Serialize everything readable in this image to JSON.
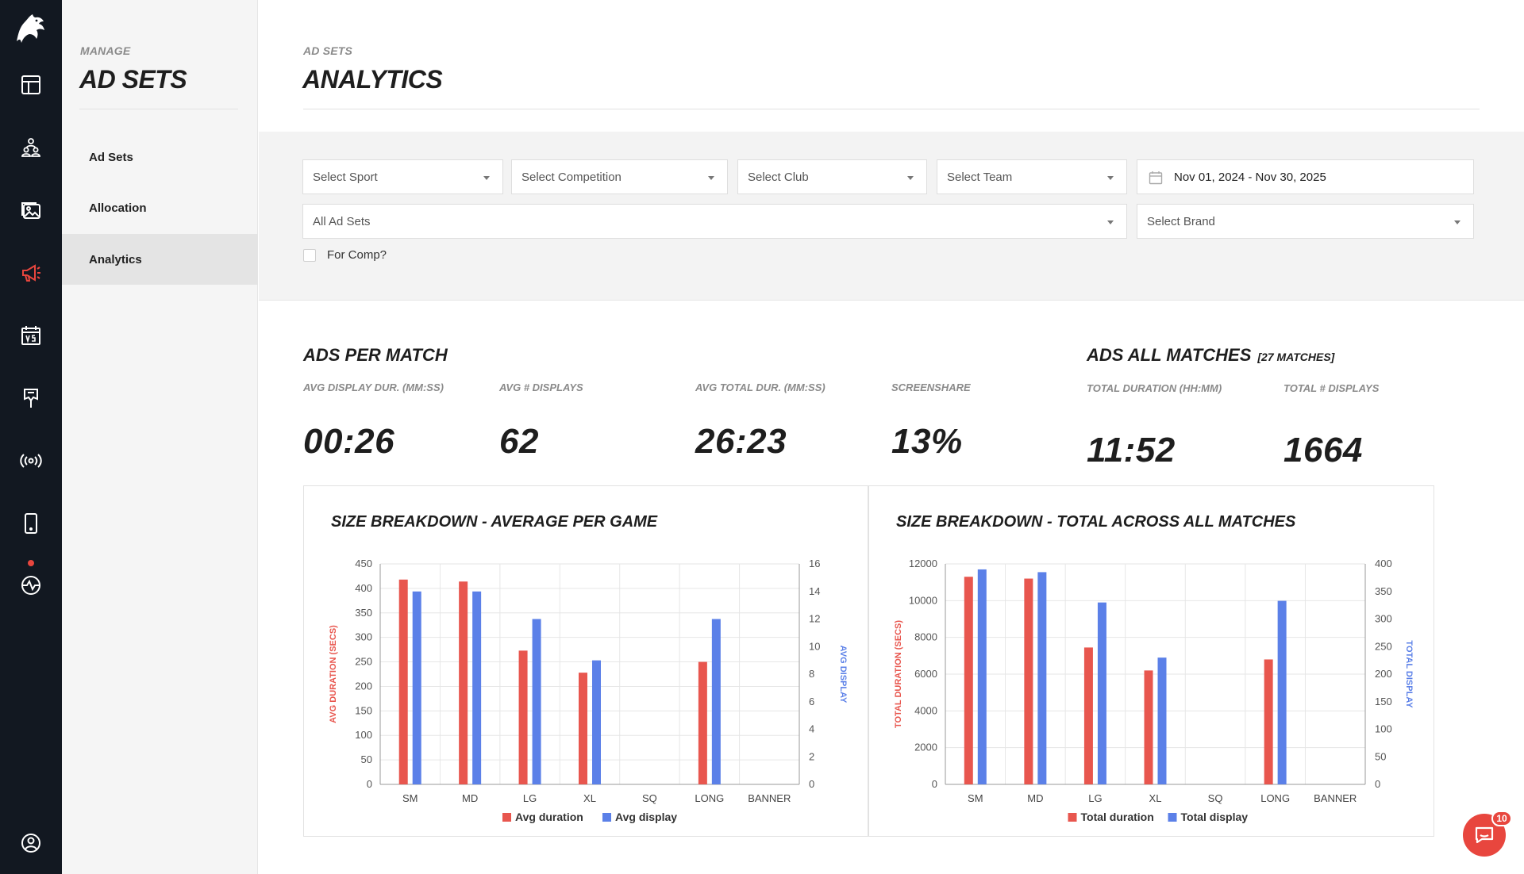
{
  "colors": {
    "accent": "#e8463e",
    "rail_bg": "#121821",
    "series_red": "#e8564e",
    "series_blue": "#5b80e8"
  },
  "rail": {
    "icons": [
      "eagle-logo",
      "layout-icon",
      "users-icon",
      "image-icon",
      "megaphone-icon",
      "calendar-vs-icon",
      "banner-icon",
      "broadcast-icon",
      "tablet-icon",
      "pulse-icon",
      "profile-icon"
    ],
    "active": "megaphone-icon"
  },
  "subnav": {
    "eyebrow": "MANAGE",
    "title": "AD SETS",
    "items": [
      {
        "label": "Ad Sets"
      },
      {
        "label": "Allocation"
      },
      {
        "label": "Analytics"
      }
    ],
    "active": "Analytics"
  },
  "page": {
    "eyebrow": "AD SETS",
    "title": "ANALYTICS"
  },
  "filters": {
    "sport": "Select Sport",
    "competition": "Select Competition",
    "club": "Select Club",
    "team": "Select Team",
    "date_range": "Nov 01, 2024 - Nov 30, 2025",
    "ad_sets": "All Ad Sets",
    "brand": "Select Brand",
    "for_comp_label": "For Comp?",
    "for_comp_checked": false
  },
  "per_match": {
    "heading": "ADS PER MATCH",
    "stats": [
      {
        "label": "AVG DISPLAY DUR. (MM:SS)",
        "value": "00:26"
      },
      {
        "label": "AVG # DISPLAYS",
        "value": "62"
      },
      {
        "label": "AVG TOTAL DUR. (MM:SS)",
        "value": "26:23"
      },
      {
        "label": "SCREENSHARE",
        "value": "13%"
      }
    ]
  },
  "all_matches": {
    "heading": "ADS ALL MATCHES",
    "sub": "[27 MATCHES]",
    "stats": [
      {
        "label": "TOTAL DURATION (HH:MM)",
        "value": "11:52"
      },
      {
        "label": "TOTAL # DISPLAYS",
        "value": "1664"
      }
    ]
  },
  "chart_data": [
    {
      "type": "bar",
      "title": "SIZE BREAKDOWN - AVERAGE PER GAME",
      "categories": [
        "SM",
        "MD",
        "LG",
        "XL",
        "SQ",
        "LONG",
        "BANNER"
      ],
      "ylabel": "AVG DURATION (SECS)",
      "y2label": "AVG DISPLAY",
      "ylim": [
        0,
        450
      ],
      "yticks": [
        0,
        50,
        100,
        150,
        200,
        250,
        300,
        350,
        400,
        450
      ],
      "y2lim": [
        0,
        16
      ],
      "y2ticks": [
        0,
        2,
        4,
        6,
        8,
        10,
        12,
        14,
        16
      ],
      "series": [
        {
          "name": "Avg duration",
          "axis": "left",
          "color": "#e8564e",
          "values": [
            418,
            414,
            273,
            228,
            null,
            250,
            null
          ]
        },
        {
          "name": "Avg display",
          "axis": "right",
          "color": "#5b80e8",
          "values": [
            14.0,
            14.0,
            12.0,
            9.0,
            null,
            12.0,
            null
          ]
        }
      ],
      "legend": "bottom",
      "grid": true
    },
    {
      "type": "bar",
      "title": "SIZE BREAKDOWN - TOTAL ACROSS ALL MATCHES",
      "categories": [
        "SM",
        "MD",
        "LG",
        "XL",
        "SQ",
        "LONG",
        "BANNER"
      ],
      "ylabel": "TOTAL DURATION (SECS)",
      "y2label": "TOTAL DISPLAY",
      "ylim": [
        0,
        12000
      ],
      "yticks": [
        0,
        2000,
        4000,
        6000,
        8000,
        10000,
        12000
      ],
      "y2lim": [
        0,
        400
      ],
      "y2ticks": [
        0,
        50,
        100,
        150,
        200,
        250,
        300,
        350,
        400
      ],
      "series": [
        {
          "name": "Total duration",
          "axis": "left",
          "color": "#e8564e",
          "values": [
            11300,
            11200,
            7450,
            6200,
            null,
            6800,
            null
          ]
        },
        {
          "name": "Total display",
          "axis": "right",
          "color": "#5b80e8",
          "values": [
            390,
            385,
            330,
            230,
            null,
            333,
            null
          ]
        }
      ],
      "legend": "bottom",
      "grid": true
    }
  ],
  "chat": {
    "badge": "10"
  }
}
